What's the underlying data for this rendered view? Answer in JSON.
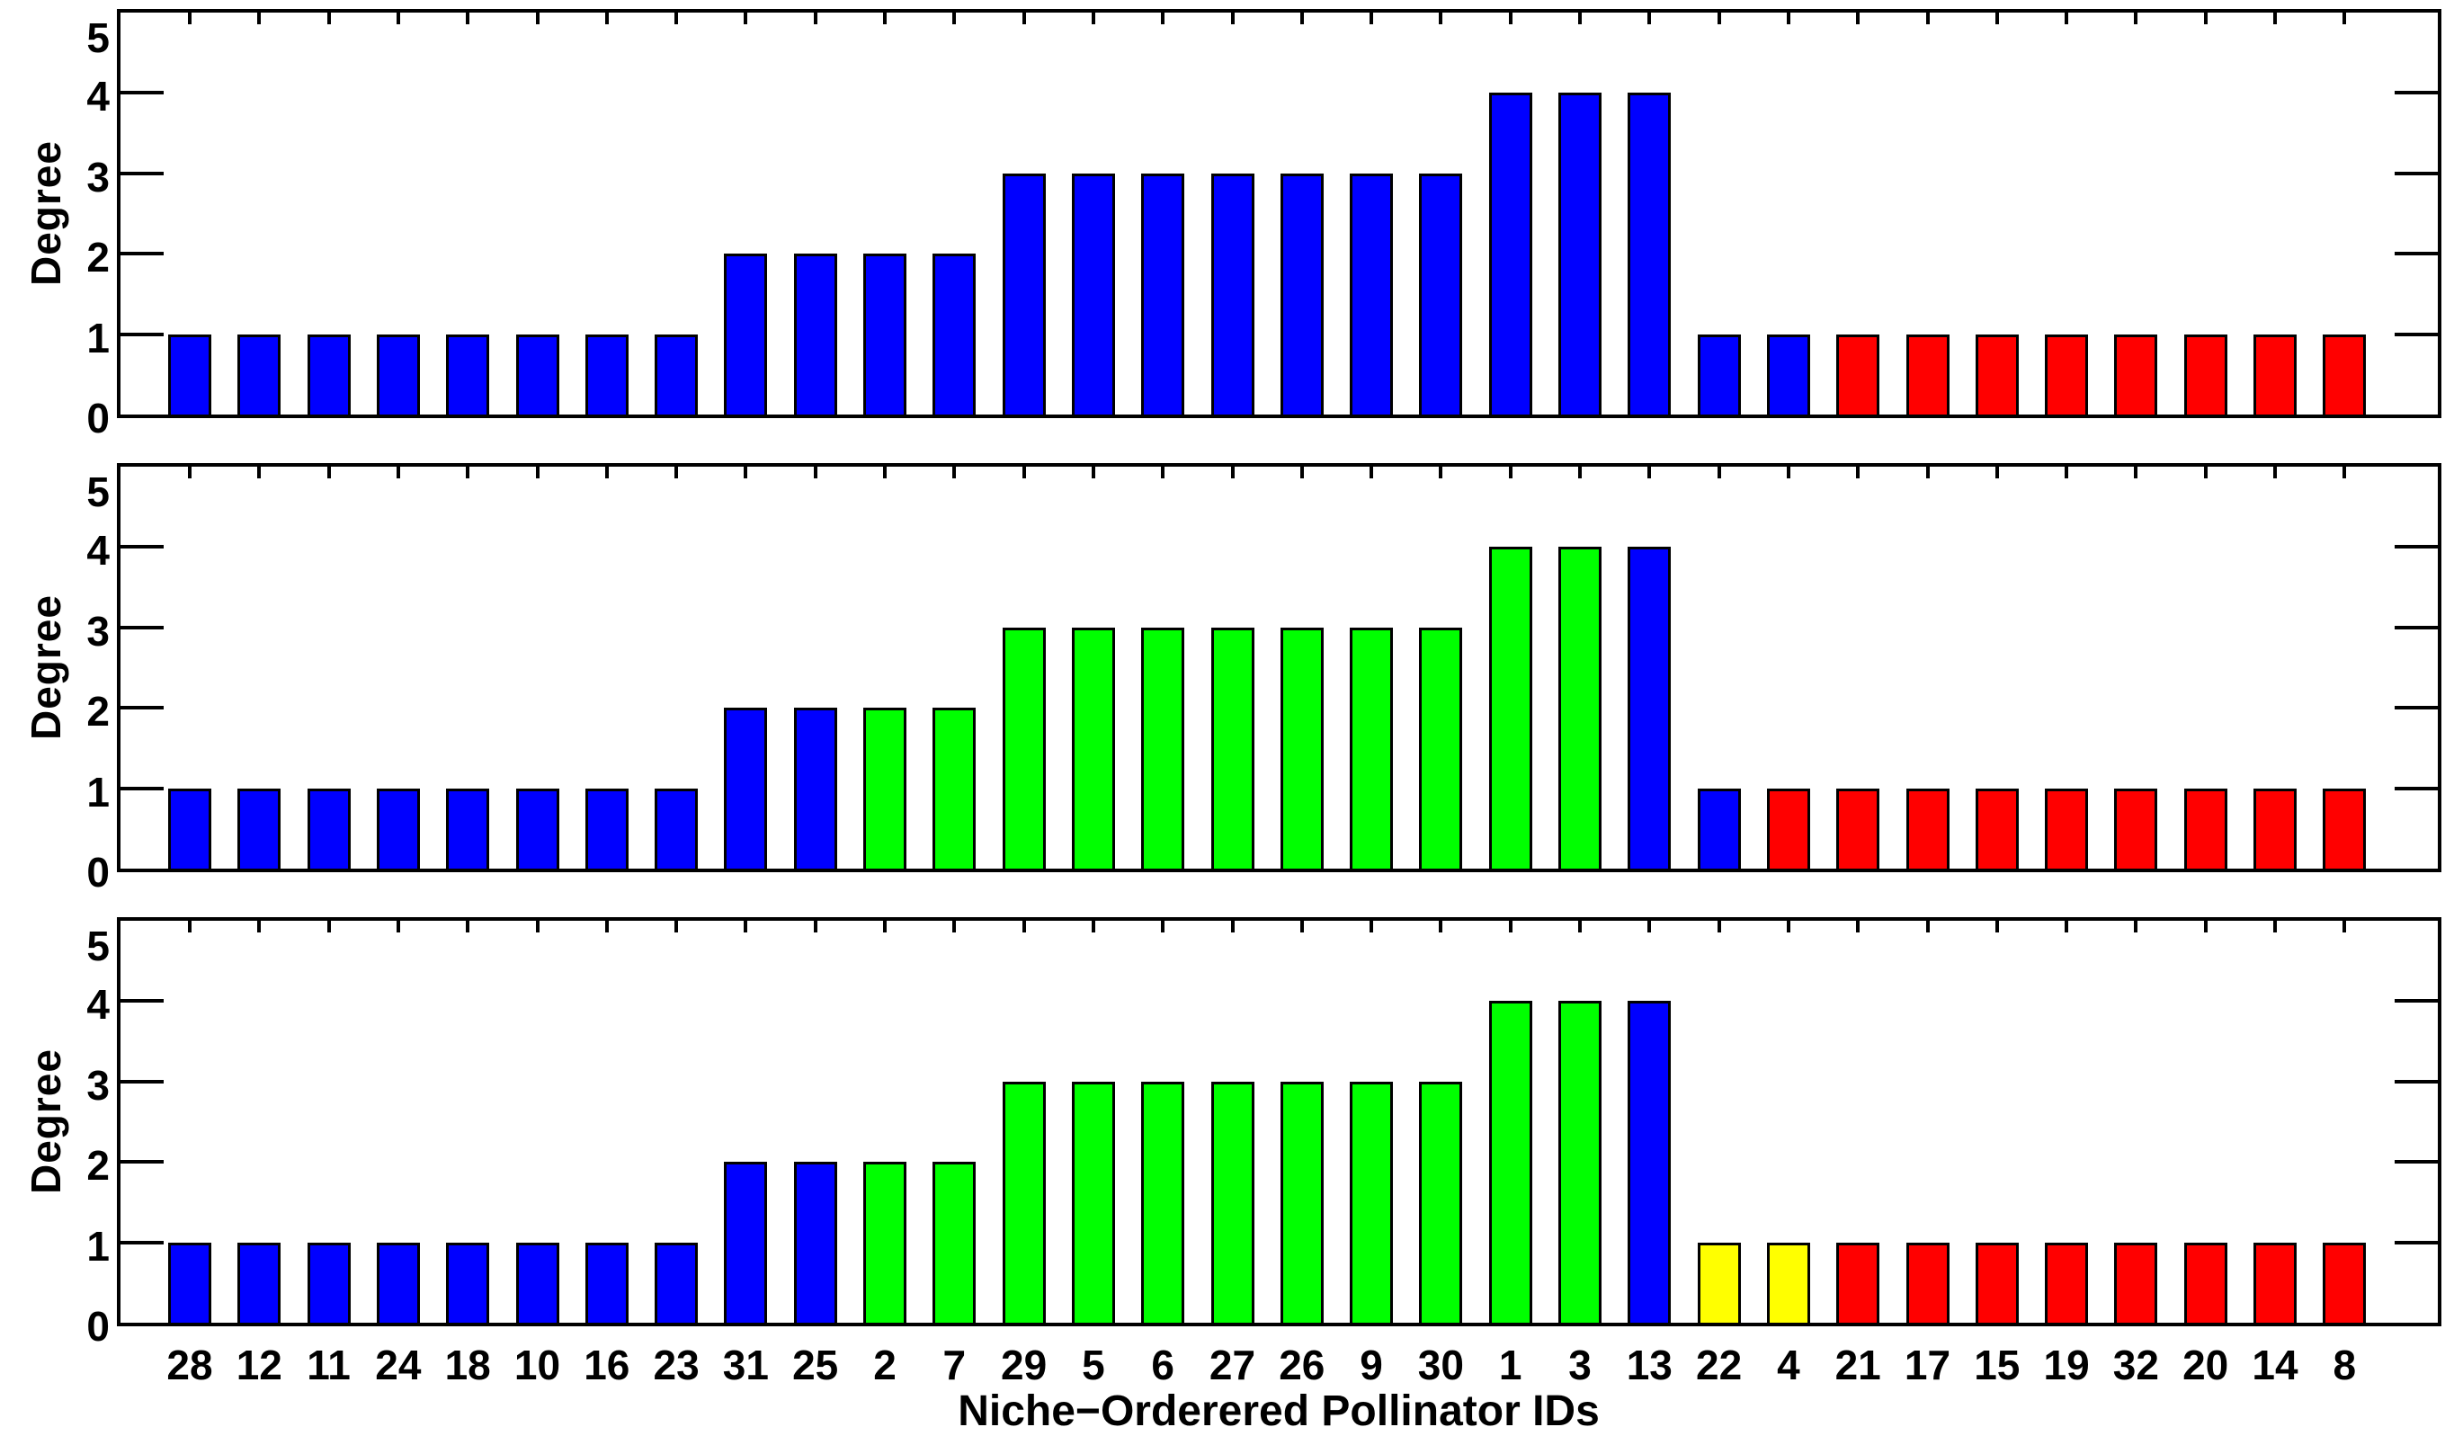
{
  "chart_data": {
    "type": "bar",
    "title": "",
    "xlabel": "Niche−Orderered Pollinator IDs",
    "ylabel": "Degree",
    "ylim": [
      0,
      5
    ],
    "yticks": [
      "0",
      "1",
      "2",
      "3",
      "4",
      "5"
    ],
    "grid": false,
    "legend": null,
    "categories": [
      "28",
      "12",
      "11",
      "24",
      "18",
      "10",
      "16",
      "23",
      "31",
      "25",
      "2",
      "7",
      "29",
      "5",
      "6",
      "27",
      "26",
      "9",
      "30",
      "1",
      "3",
      "13",
      "22",
      "4",
      "21",
      "17",
      "15",
      "19",
      "32",
      "20",
      "14",
      "8"
    ],
    "palette": {
      "blue": "#0000ff",
      "green": "#00ff00",
      "red": "#ff0000",
      "yellow": "#ffff00"
    },
    "panels": [
      {
        "name": "top",
        "values": [
          1,
          1,
          1,
          1,
          1,
          1,
          1,
          1,
          2,
          2,
          2,
          2,
          3,
          3,
          3,
          3,
          3,
          3,
          3,
          4,
          4,
          4,
          1,
          1,
          1,
          1,
          1,
          1,
          1,
          1,
          1,
          1
        ],
        "bar_colors": [
          "blue",
          "blue",
          "blue",
          "blue",
          "blue",
          "blue",
          "blue",
          "blue",
          "blue",
          "blue",
          "blue",
          "blue",
          "blue",
          "blue",
          "blue",
          "blue",
          "blue",
          "blue",
          "blue",
          "blue",
          "blue",
          "blue",
          "blue",
          "blue",
          "red",
          "red",
          "red",
          "red",
          "red",
          "red",
          "red",
          "red"
        ]
      },
      {
        "name": "middle",
        "values": [
          1,
          1,
          1,
          1,
          1,
          1,
          1,
          1,
          2,
          2,
          2,
          2,
          3,
          3,
          3,
          3,
          3,
          3,
          3,
          4,
          4,
          4,
          1,
          1,
          1,
          1,
          1,
          1,
          1,
          1,
          1,
          1
        ],
        "bar_colors": [
          "blue",
          "blue",
          "blue",
          "blue",
          "blue",
          "blue",
          "blue",
          "blue",
          "blue",
          "blue",
          "green",
          "green",
          "green",
          "green",
          "green",
          "green",
          "green",
          "green",
          "green",
          "green",
          "green",
          "blue",
          "blue",
          "red",
          "red",
          "red",
          "red",
          "red",
          "red",
          "red",
          "red",
          "red"
        ]
      },
      {
        "name": "bottom",
        "values": [
          1,
          1,
          1,
          1,
          1,
          1,
          1,
          1,
          2,
          2,
          2,
          2,
          3,
          3,
          3,
          3,
          3,
          3,
          3,
          4,
          4,
          4,
          1,
          1,
          1,
          1,
          1,
          1,
          1,
          1,
          1,
          1
        ],
        "bar_colors": [
          "blue",
          "blue",
          "blue",
          "blue",
          "blue",
          "blue",
          "blue",
          "blue",
          "blue",
          "blue",
          "green",
          "green",
          "green",
          "green",
          "green",
          "green",
          "green",
          "green",
          "green",
          "green",
          "green",
          "blue",
          "yellow",
          "yellow",
          "red",
          "red",
          "red",
          "red",
          "red",
          "red",
          "red",
          "red"
        ]
      }
    ]
  }
}
